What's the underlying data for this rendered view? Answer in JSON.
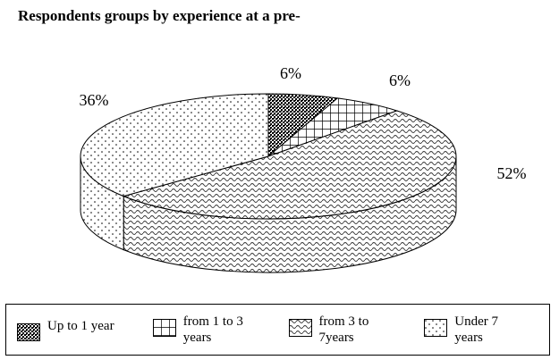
{
  "chart_data": {
    "type": "pie3d",
    "title": "Respondents groups by experience at a pre-",
    "categories": [
      "Up to 1 year",
      "from 1 to 3 years",
      "from 3 to 7years",
      "Under 7 years"
    ],
    "values": [
      6,
      6,
      52,
      36
    ],
    "value_labels": [
      "6%",
      "6%",
      "52%",
      "36%"
    ],
    "legend": "bottom"
  }
}
